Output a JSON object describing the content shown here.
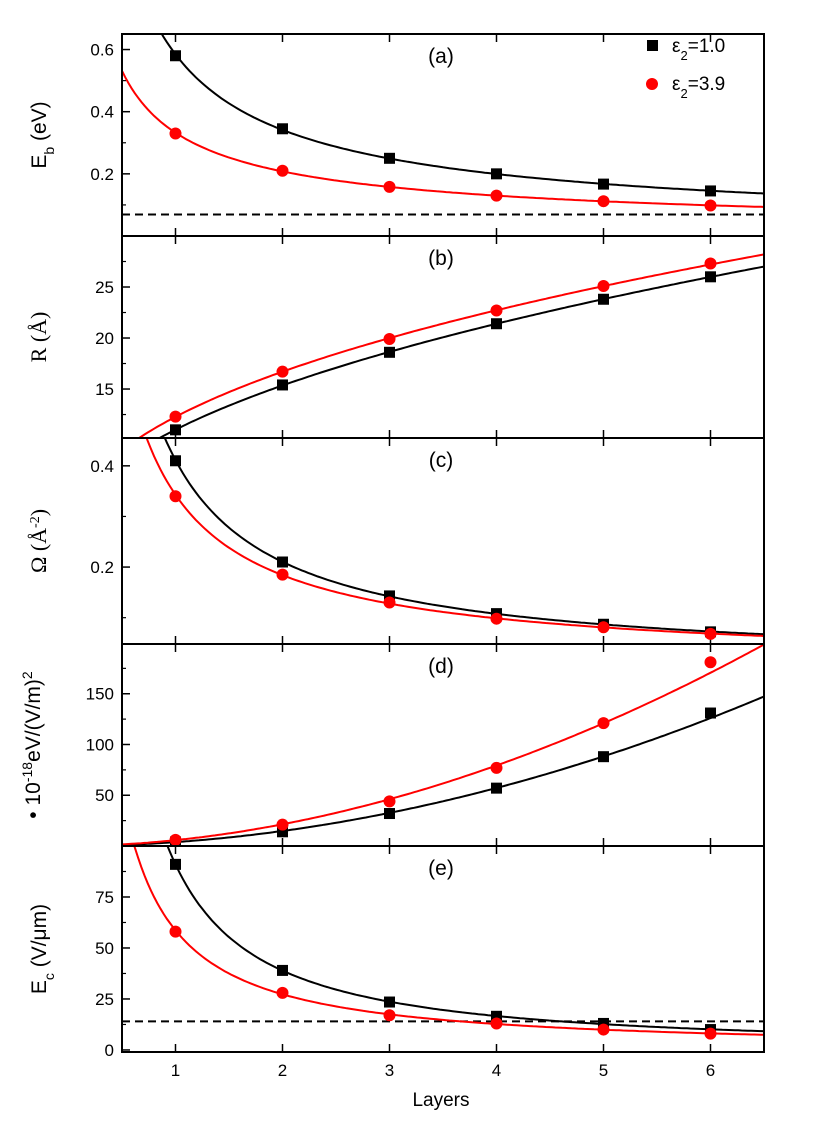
{
  "chart_data": {
    "type": "line",
    "x": [
      1,
      2,
      3,
      4,
      5,
      6
    ],
    "xlim": [
      0.5,
      6.5
    ],
    "xticks": [
      "1",
      "2",
      "3",
      "4",
      "5",
      "6"
    ],
    "xlabel": "Layers",
    "legend": {
      "placement": "top-right",
      "entries": [
        {
          "parts": [
            {
              "t": "ε",
              "s": ""
            },
            {
              "t": "2",
              "s": "sub"
            },
            {
              "t": "=1.0",
              "s": ""
            }
          ],
          "color": "#000000",
          "marker": "square"
        },
        {
          "parts": [
            {
              "t": "ε",
              "s": ""
            },
            {
              "t": "2",
              "s": "sub"
            },
            {
              "t": "=3.9",
              "s": ""
            }
          ],
          "color": "#ff0000",
          "marker": "circle"
        }
      ]
    },
    "panels": [
      {
        "label": "(a)",
        "ylabel": [
          {
            "t": "E",
            "s": ""
          },
          {
            "t": "b",
            "s": "sub"
          },
          {
            "t": " (eV)",
            "s": ""
          }
        ],
        "serif": false,
        "ylim": [
          0,
          0.65
        ],
        "yticks": [
          {
            "v": 0.2,
            "t": "0.2"
          },
          {
            "v": 0.4,
            "t": "0.4"
          },
          {
            "v": 0.6,
            "t": "0.6"
          }
        ],
        "minor": [
          0.1,
          0.3,
          0.5
        ],
        "dashed": 0.069,
        "series": [
          {
            "name": "ε2=1.0",
            "values": [
              0.58,
              0.345,
              0.25,
              0.2,
              0.167,
              0.145
            ]
          },
          {
            "name": "ε2=3.9",
            "values": [
              0.33,
              0.21,
              0.158,
              0.13,
              0.112,
              0.098
            ]
          }
        ]
      },
      {
        "label": "(b)",
        "ylabel": [
          {
            "t": "R (Å)",
            "s": ""
          }
        ],
        "serif": true,
        "ylim": [
          10.2,
          30
        ],
        "yticks": [
          {
            "v": 15,
            "t": "15"
          },
          {
            "v": 20,
            "t": "20"
          },
          {
            "v": 25,
            "t": "25"
          }
        ],
        "minor": [
          12.5,
          17.5,
          22.5,
          27.5
        ],
        "dashed": null,
        "series": [
          {
            "name": "ε2=1.0",
            "values": [
              11.0,
              15.4,
              18.6,
              21.4,
              23.8,
              26.0
            ]
          },
          {
            "name": "ε2=3.9",
            "values": [
              12.3,
              16.7,
              19.9,
              22.7,
              25.1,
              27.3
            ]
          }
        ]
      },
      {
        "label": "(c)",
        "ylabel": [
          {
            "t": "Ω (Å",
            "s": ""
          },
          {
            "t": "-2",
            "s": "sup"
          },
          {
            "t": ")",
            "s": ""
          }
        ],
        "serif": true,
        "ylim": [
          0.048,
          0.455
        ],
        "yticks": [
          {
            "v": 0.2,
            "t": "0.2"
          },
          {
            "v": 0.4,
            "t": "0.4"
          }
        ],
        "minor": [
          0.1,
          0.3
        ],
        "dashed": null,
        "series": [
          {
            "name": "ε2=1.0",
            "values": [
              0.41,
              0.21,
              0.143,
              0.108,
              0.087,
              0.072
            ]
          },
          {
            "name": "ε2=3.9",
            "values": [
              0.34,
              0.185,
              0.13,
              0.098,
              0.081,
              0.068
            ]
          }
        ]
      },
      {
        "label": "(d)",
        "ylabel": [
          {
            "t": "• 10",
            "s": ""
          },
          {
            "t": "-18",
            "s": "sup"
          },
          {
            "t": "eV/(V/m)",
            "s": ""
          },
          {
            "t": "2",
            "s": "sup"
          }
        ],
        "serif": false,
        "ylim": [
          0,
          199
        ],
        "yticks": [
          {
            "v": 50,
            "t": "50"
          },
          {
            "v": 100,
            "t": "100"
          },
          {
            "v": 150,
            "t": "150"
          }
        ],
        "minor": [
          25,
          75,
          125,
          175
        ],
        "dashed": null,
        "series": [
          {
            "name": "ε2=1.0",
            "values": [
              4,
              14,
              32,
              57,
              88,
              131
            ]
          },
          {
            "name": "ε2=3.9",
            "values": [
              6,
              21,
              44,
              77,
              121,
              181
            ]
          }
        ]
      },
      {
        "label": "(e)",
        "ylabel": [
          {
            "t": "E",
            "s": ""
          },
          {
            "t": "c",
            "s": "sub"
          },
          {
            "t": " (V/μm)",
            "s": ""
          }
        ],
        "serif": false,
        "ylim": [
          -1,
          100
        ],
        "yticks": [
          {
            "v": 0,
            "t": "0"
          },
          {
            "v": 25,
            "t": "25"
          },
          {
            "v": 50,
            "t": "50"
          },
          {
            "v": 75,
            "t": "75"
          }
        ],
        "minor": [
          12.5,
          37.5,
          62.5,
          87.5
        ],
        "dashed": 14,
        "series": [
          {
            "name": "ε2=1.0",
            "values": [
              91,
              39,
              23.5,
              16.5,
              13,
              10
            ]
          },
          {
            "name": "ε2=3.9",
            "values": [
              58,
              28,
              17,
              13,
              10,
              8
            ]
          }
        ]
      }
    ]
  }
}
